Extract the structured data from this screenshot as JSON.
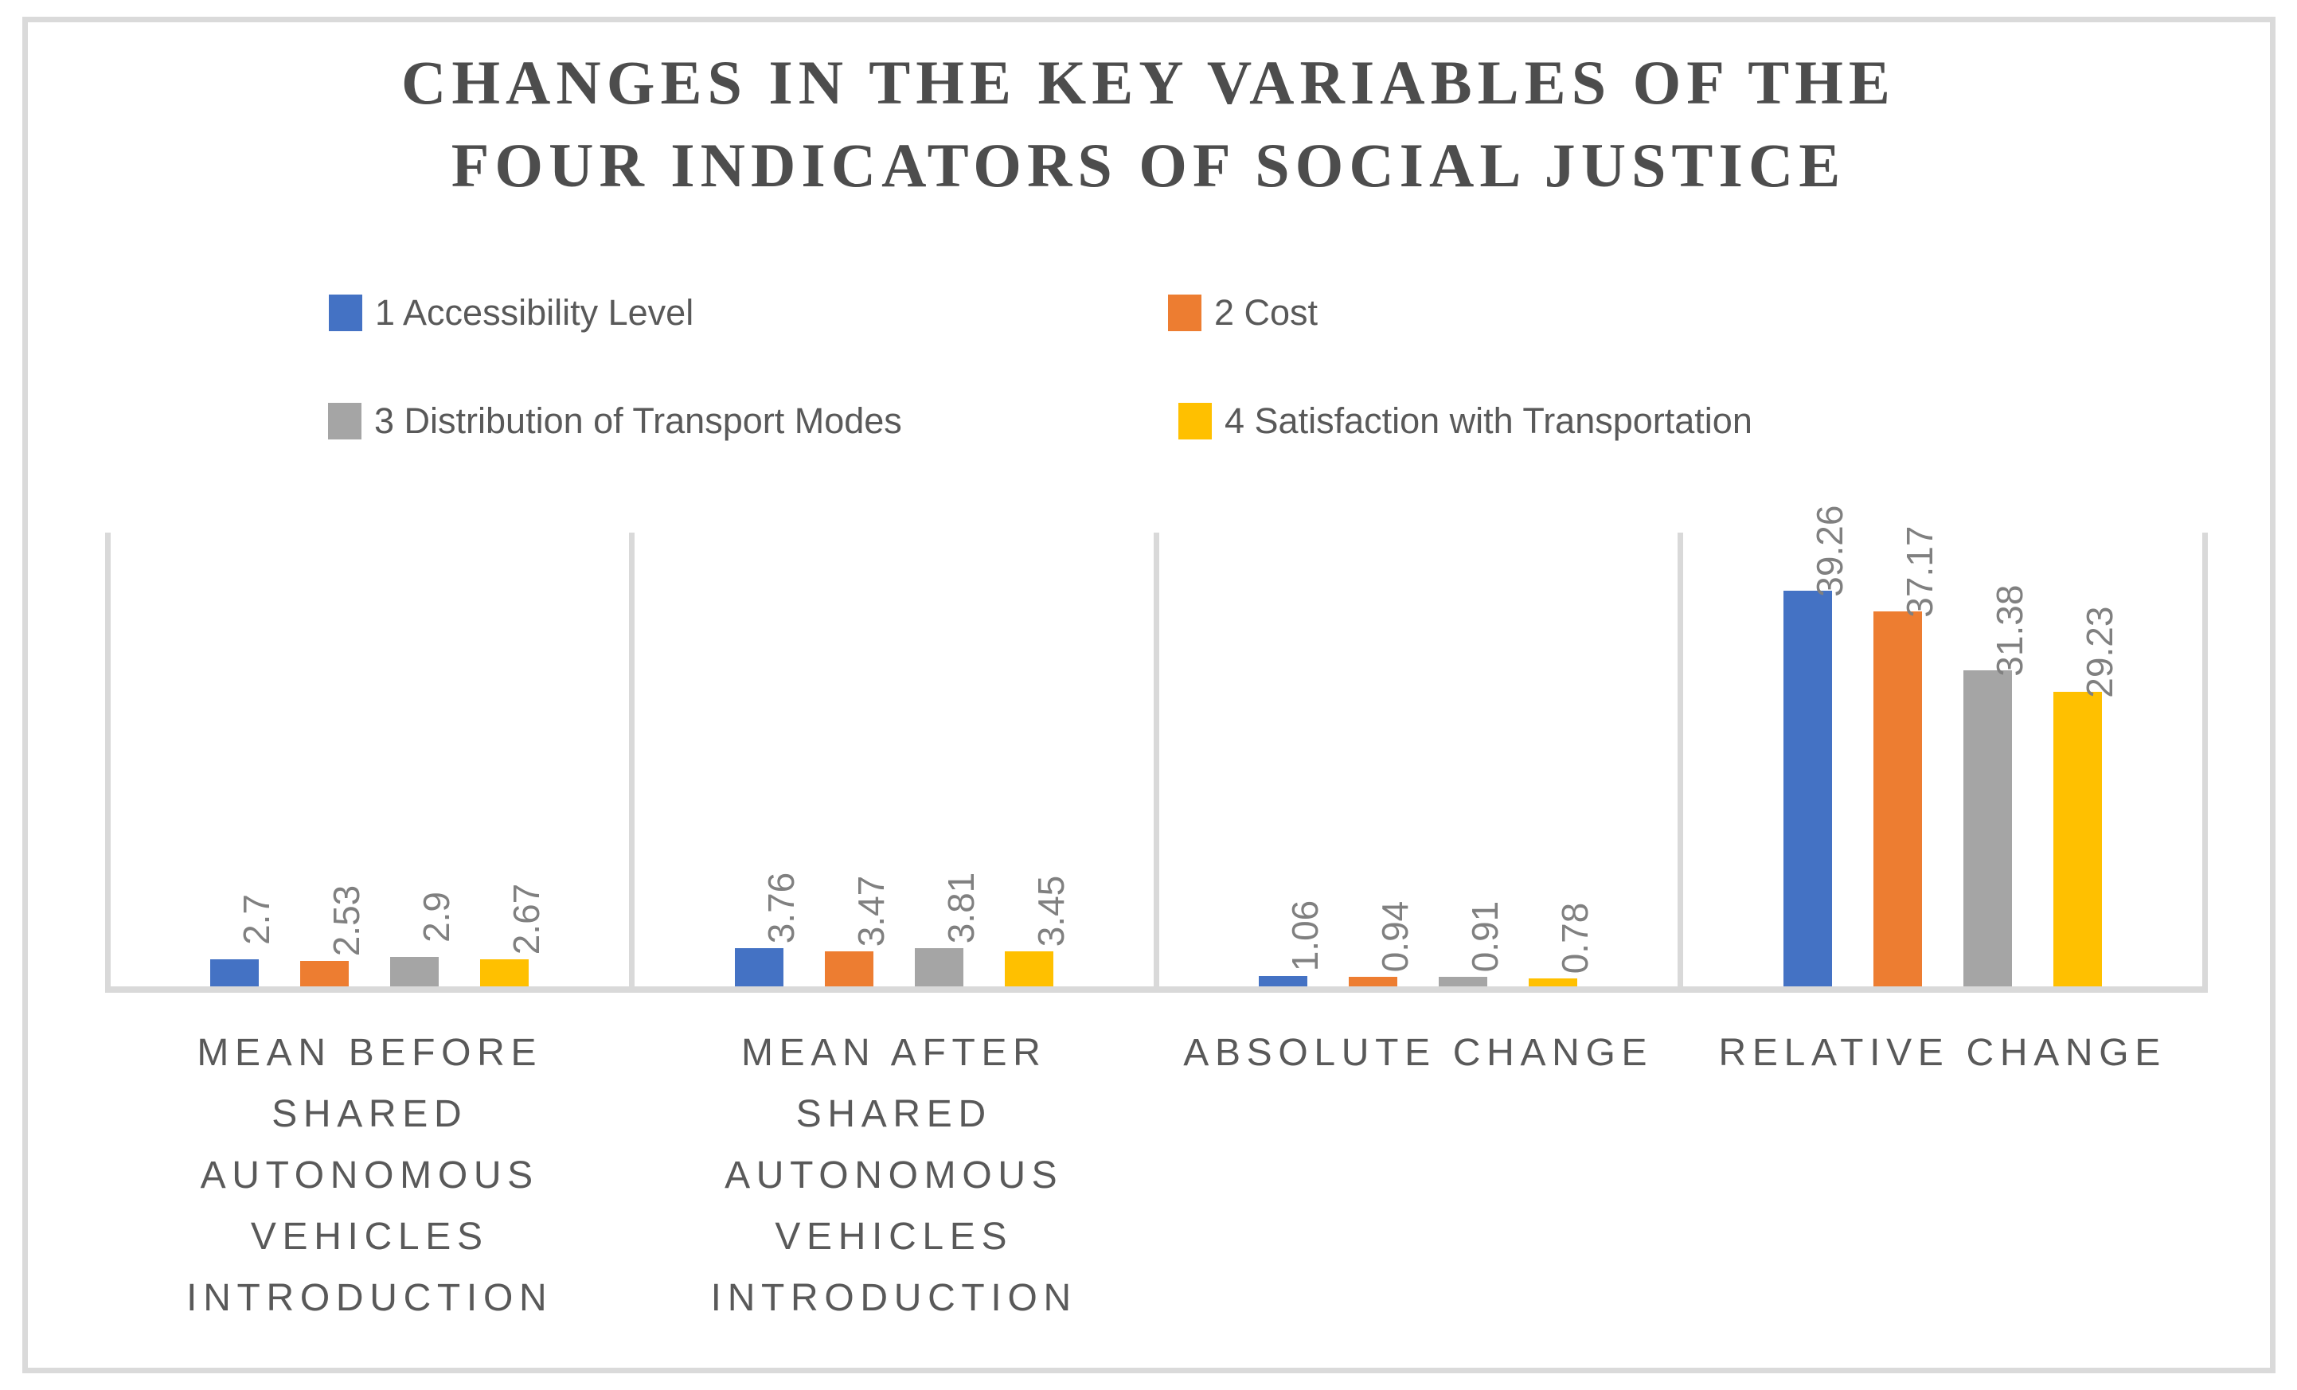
{
  "title": {
    "line1": "CHANGES IN THE KEY VARIABLES OF THE",
    "line2": "FOUR INDICATORS OF SOCIAL JUSTICE"
  },
  "legend": {
    "items": [
      {
        "label": "1 Accessibility Level",
        "color": "#4472c4"
      },
      {
        "label": "2 Cost",
        "color": "#ed7d31"
      },
      {
        "label": "3 Distribution of Transport Modes",
        "color": "#a5a5a5"
      },
      {
        "label": "4 Satisfaction with Transportation",
        "color": "#ffc000"
      }
    ]
  },
  "colors": {
    "series_blue": "#4472c4",
    "series_orange": "#ed7d31",
    "series_gray": "#a5a5a5",
    "series_yellow": "#ffc000",
    "axis_line": "#d9d9d9",
    "frame_border": "#dadada",
    "title_text": "#4d4d4d",
    "body_text": "#595959",
    "data_label_text": "#808080"
  },
  "chart_data": {
    "type": "bar",
    "title": "CHANGES IN THE KEY VARIABLES OF THE FOUR INDICATORS OF SOCIAL JUSTICE",
    "legend_position": "top",
    "grid": "vertical category separators only, no y-axis ticks or labels",
    "ylim": [
      0,
      45
    ],
    "xlabel": "",
    "ylabel": "",
    "categories": [
      "MEAN BEFORE SHARED AUTONOMOUS VEHICLES INTRODUCTION",
      "MEAN AFTER SHARED AUTONOMOUS VEHICLES INTRODUCTION",
      "ABSOLUTE CHANGE",
      "RELATIVE CHANGE"
    ],
    "category_display_lines": [
      [
        "MEAN BEFORE",
        "SHARED",
        "AUTONOMOUS",
        "VEHICLES",
        "INTRODUCTION"
      ],
      [
        "MEAN AFTER",
        "SHARED",
        "AUTONOMOUS",
        "VEHICLES",
        "INTRODUCTION"
      ],
      [
        "ABSOLUTE CHANGE"
      ],
      [
        "RELATIVE CHANGE"
      ]
    ],
    "series": [
      {
        "name": "1 Accessibility Level",
        "color": "#4472c4",
        "values": [
          2.7,
          3.76,
          1.06,
          39.26
        ]
      },
      {
        "name": "2 Cost",
        "color": "#ed7d31",
        "values": [
          2.53,
          3.47,
          0.94,
          37.17
        ]
      },
      {
        "name": "3 Distribution of Transport Modes",
        "color": "#a5a5a5",
        "values": [
          2.9,
          3.81,
          0.91,
          31.38
        ]
      },
      {
        "name": "4 Satisfaction with Transportation",
        "color": "#ffc000",
        "values": [
          2.67,
          3.45,
          0.78,
          29.23
        ]
      }
    ],
    "data_labels": [
      [
        "2.7",
        "3.76",
        "1.06",
        "39.26"
      ],
      [
        "2.53",
        "3.47",
        "0.94",
        "37.17"
      ],
      [
        "2.9",
        "3.81",
        "0.91",
        "31.38"
      ],
      [
        "2.67",
        "3.45",
        "0.78",
        "29.23"
      ]
    ]
  }
}
